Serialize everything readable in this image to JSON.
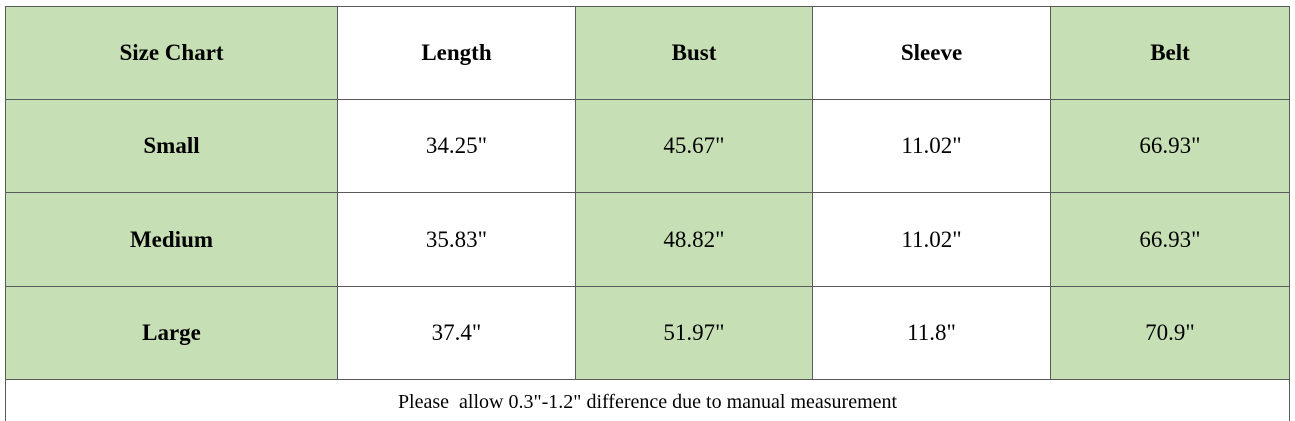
{
  "table": {
    "header": [
      "Size Chart",
      "Length",
      "Bust",
      "Sleeve",
      "Belt"
    ],
    "rows": [
      [
        "Small",
        "34.25\"",
        "45.67\"",
        "11.02\"",
        "66.93\""
      ],
      [
        "Medium",
        "35.83\"",
        "48.82\"",
        "11.02\"",
        "66.93\""
      ],
      [
        "Large",
        "37.4\"",
        "51.97\"",
        "11.8\"",
        "70.9\""
      ]
    ],
    "note": "Please  allow 0.3\"-1.2\" difference due to manual measurement"
  }
}
